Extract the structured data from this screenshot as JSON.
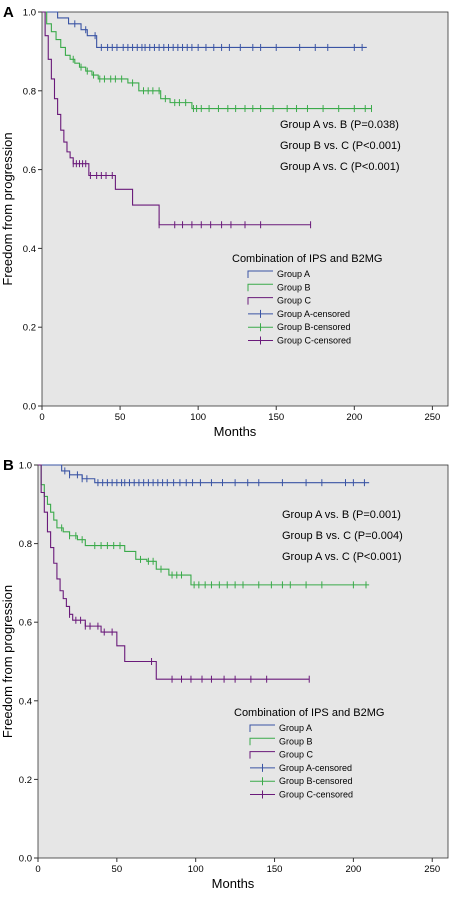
{
  "colors": {
    "background": "#e6e6e6",
    "group_a": "#3a54a4",
    "group_b": "#3aaa4a",
    "group_c": "#6a1a7a",
    "axis": "#333333"
  },
  "chart_data": [
    {
      "type": "line",
      "panel_label": "A",
      "title": "",
      "xlabel": "Months",
      "ylabel": "Freedom from progression",
      "xlim": [
        0,
        260
      ],
      "ylim": [
        0.0,
        1.0
      ],
      "xticks": [
        "0",
        "50",
        "100",
        "150",
        "200",
        "250"
      ],
      "yticks": [
        "0.0",
        "0.2",
        "0.4",
        "0.6",
        "0.8",
        "1.0"
      ],
      "grid": false,
      "legend": {
        "title": "Combination of IPS and B2MG",
        "placement": "center-right",
        "entries": [
          "Group A",
          "Group B",
          "Group C",
          "Group A-censored",
          "Group B-censored",
          "Group C-censored"
        ]
      },
      "annotations": [
        "Group A vs. B (P=0.038)",
        "Group B vs. C (P<0.001)",
        "Group A vs. C (P<0.001)"
      ],
      "series": [
        {
          "name": "Group A",
          "step_x": [
            0,
            10,
            17,
            25,
            29,
            35
          ],
          "step_y": [
            1.0,
            0.985,
            0.97,
            0.955,
            0.94,
            0.91
          ],
          "end_x": 208,
          "censored_x": [
            21,
            28,
            34,
            38,
            42,
            45,
            48,
            52,
            55,
            58,
            61,
            64,
            66,
            69,
            72,
            75,
            78,
            81,
            84,
            87,
            90,
            93,
            96,
            100,
            105,
            110,
            115,
            120,
            127,
            135,
            140,
            150,
            165,
            175,
            183,
            200,
            205
          ]
        },
        {
          "name": "Group B",
          "step_x": [
            0,
            3,
            6,
            9,
            12,
            15,
            18,
            21,
            24,
            28,
            32,
            36,
            55,
            62,
            76,
            82,
            96
          ],
          "step_y": [
            1.0,
            0.97,
            0.95,
            0.93,
            0.91,
            0.89,
            0.88,
            0.87,
            0.86,
            0.85,
            0.84,
            0.83,
            0.82,
            0.8,
            0.78,
            0.77,
            0.755
          ],
          "end_x": 211,
          "censored_x": [
            20,
            25,
            29,
            33,
            37,
            40,
            44,
            47,
            51,
            58,
            65,
            68,
            71,
            75,
            79,
            85,
            88,
            92,
            97,
            99,
            102,
            107,
            113,
            119,
            124,
            130,
            135,
            140,
            148,
            157,
            163,
            170,
            180,
            190,
            200,
            207,
            211
          ]
        },
        {
          "name": "Group C",
          "step_x": [
            0,
            2,
            4,
            6,
            8,
            10,
            12,
            14,
            16,
            18,
            20,
            30,
            37,
            47,
            58,
            75
          ],
          "step_y": [
            1.0,
            0.94,
            0.88,
            0.83,
            0.78,
            0.74,
            0.7,
            0.67,
            0.645,
            0.63,
            0.615,
            0.585,
            0.585,
            0.55,
            0.51,
            0.46
          ],
          "end_x": 172,
          "censored_x": [
            20,
            22,
            24,
            26,
            28,
            31,
            35,
            38,
            41,
            45,
            75,
            85,
            90,
            96,
            102,
            108,
            115,
            121,
            130,
            140,
            172
          ]
        }
      ]
    },
    {
      "type": "line",
      "panel_label": "B",
      "title": "",
      "xlabel": "Months",
      "ylabel": "Freedom from progression",
      "xlim": [
        0,
        260
      ],
      "ylim": [
        0.0,
        1.0
      ],
      "xticks": [
        "0",
        "50",
        "100",
        "150",
        "200",
        "250"
      ],
      "yticks": [
        "0.0",
        "0.2",
        "0.4",
        "0.6",
        "0.8",
        "1.0"
      ],
      "grid": false,
      "legend": {
        "title": "Combination of IPS and B2MG",
        "placement": "center-right",
        "entries": [
          "Group A",
          "Group B",
          "Group C",
          "Group A-censored",
          "Group B-censored",
          "Group C-censored"
        ]
      },
      "annotations": [
        "Group A vs. B (P=0.001)",
        "Group B vs. C (P=0.004)",
        "Group A vs. C (P<0.001)"
      ],
      "series": [
        {
          "name": "Group A",
          "step_x": [
            0,
            15,
            20,
            28,
            36
          ],
          "step_y": [
            1.0,
            0.985,
            0.975,
            0.965,
            0.955
          ],
          "end_x": 210,
          "censored_x": [
            17,
            20,
            25,
            28,
            31,
            38,
            41,
            44,
            47,
            50,
            53,
            55,
            58,
            61,
            64,
            67,
            70,
            73,
            76,
            79,
            82,
            86,
            90,
            94,
            98,
            103,
            110,
            117,
            125,
            133,
            140,
            155,
            170,
            180,
            195,
            200,
            207
          ]
        },
        {
          "name": "Group B",
          "step_x": [
            0,
            2,
            4,
            6,
            8,
            10,
            12,
            16,
            20,
            25,
            30,
            55,
            62,
            69,
            75,
            83,
            97
          ],
          "step_y": [
            1.0,
            0.95,
            0.92,
            0.9,
            0.88,
            0.86,
            0.84,
            0.83,
            0.82,
            0.81,
            0.795,
            0.78,
            0.76,
            0.755,
            0.735,
            0.72,
            0.695
          ],
          "end_x": 210,
          "censored_x": [
            15,
            20,
            24,
            28,
            36,
            40,
            44,
            48,
            52,
            65,
            70,
            73,
            78,
            85,
            88,
            91,
            99,
            102,
            106,
            110,
            115,
            120,
            125,
            130,
            140,
            148,
            155,
            160,
            170,
            180,
            200,
            208
          ]
        },
        {
          "name": "Group C",
          "step_x": [
            0,
            2,
            4,
            6,
            8,
            10,
            12,
            14,
            16,
            18,
            20,
            22,
            30,
            40,
            50,
            55,
            75
          ],
          "step_y": [
            1.0,
            0.93,
            0.88,
            0.83,
            0.79,
            0.75,
            0.71,
            0.68,
            0.66,
            0.64,
            0.62,
            0.605,
            0.59,
            0.575,
            0.54,
            0.5,
            0.455
          ],
          "end_x": 172,
          "censored_x": [
            20,
            24,
            27,
            30,
            33,
            38,
            42,
            47,
            72,
            85,
            91,
            97,
            104,
            110,
            118,
            125,
            135,
            145,
            172
          ]
        }
      ]
    }
  ]
}
